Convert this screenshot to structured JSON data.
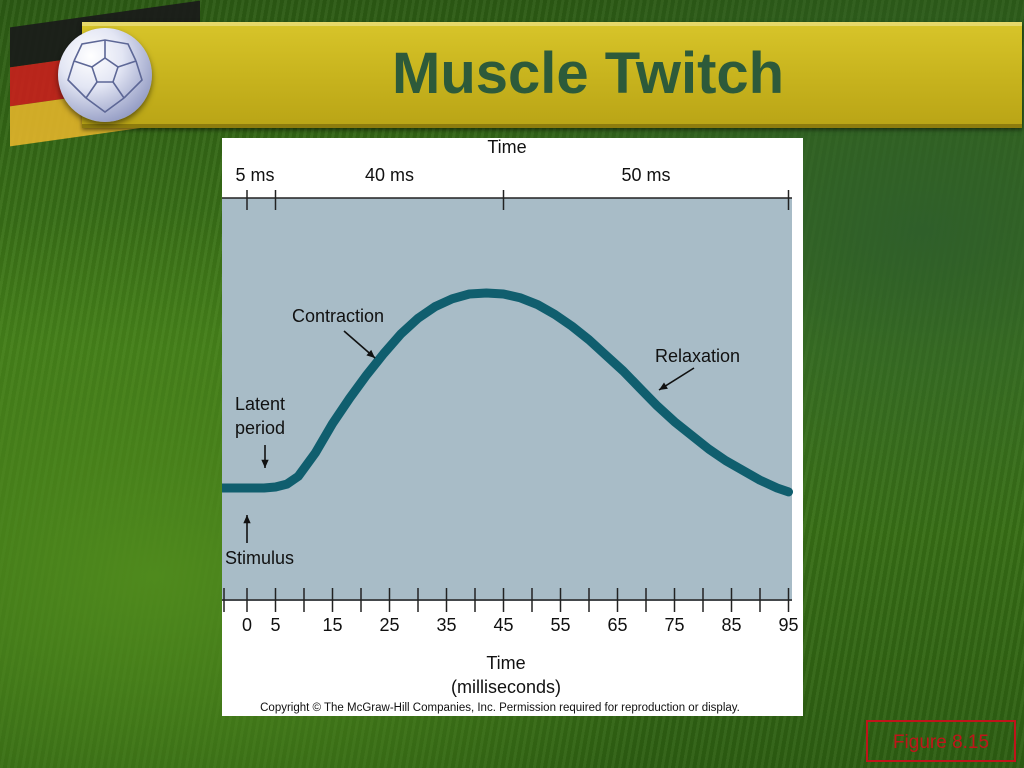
{
  "slide": {
    "title": "Muscle Twitch",
    "figure_label": "Figure 8.15",
    "copyright": "Copyright © The McGraw-Hill Companies, Inc. Permission required for reproduction or display."
  },
  "colors": {
    "title_text": "#2d5a3a",
    "title_bar": "#c8b41e",
    "plot_background": "#a8bcc7",
    "curve": "#105e6e",
    "figure_label": "#c0141a"
  },
  "icons": [
    "soccer-ball-icon",
    "flag-icon"
  ],
  "chart_data": {
    "type": "line",
    "title": "",
    "top_axis": {
      "label": "Time",
      "ticks": [
        0,
        5,
        45,
        95
      ],
      "segments": [
        {
          "label": "5 ms",
          "from": 0,
          "to": 5
        },
        {
          "label": "40 ms",
          "from": 5,
          "to": 45
        },
        {
          "label": "50 ms",
          "from": 45,
          "to": 95
        }
      ]
    },
    "x": {
      "label_line1": "Time",
      "label_line2": "(milliseconds)",
      "min": -4,
      "max": 95,
      "ticks": [
        -4,
        0,
        5,
        10,
        15,
        20,
        25,
        30,
        35,
        40,
        45,
        50,
        55,
        60,
        65,
        70,
        75,
        80,
        85,
        90,
        95
      ],
      "tick_labels": [
        0,
        5,
        15,
        25,
        35,
        45,
        55,
        65,
        75,
        85,
        95
      ]
    },
    "ylim": [
      0,
      1
    ],
    "grid": false,
    "series": [
      {
        "x": [
          -4,
          0,
          3,
          5,
          7,
          9,
          12,
          15,
          18,
          21,
          24,
          27,
          30,
          33,
          36,
          39,
          42,
          45,
          48,
          51,
          54,
          57,
          60,
          63,
          66,
          69,
          72,
          75,
          78,
          81,
          84,
          87,
          90,
          93,
          95
        ],
        "y": [
          0.0,
          0.0,
          0.0,
          0.005,
          0.02,
          0.06,
          0.18,
          0.33,
          0.46,
          0.58,
          0.69,
          0.79,
          0.87,
          0.93,
          0.97,
          0.995,
          1.0,
          0.995,
          0.975,
          0.94,
          0.89,
          0.83,
          0.76,
          0.68,
          0.6,
          0.51,
          0.42,
          0.34,
          0.27,
          0.2,
          0.14,
          0.09,
          0.04,
          0.0,
          -0.02
        ]
      }
    ],
    "annotations": [
      {
        "text": "Contraction"
      },
      {
        "text": "Relaxation"
      },
      {
        "text_line1": "Latent",
        "text_line2": "period"
      },
      {
        "text": "Stimulus"
      }
    ]
  }
}
